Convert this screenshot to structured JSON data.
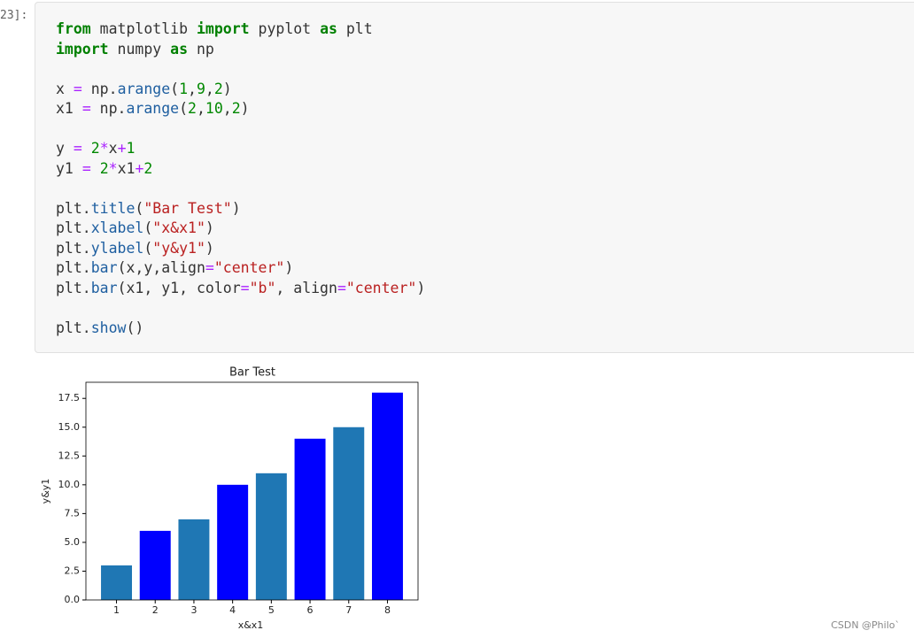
{
  "cell": {
    "prompt": "23]:",
    "code": [
      [
        {
          "text": "from",
          "color": "#008000",
          "bold": true
        },
        {
          "text": " matplotlib ",
          "color": "#333333"
        },
        {
          "text": "import",
          "color": "#008000",
          "bold": true
        },
        {
          "text": " pyplot ",
          "color": "#333333"
        },
        {
          "text": "as",
          "color": "#008000",
          "bold": true
        },
        {
          "text": " plt",
          "color": "#333333"
        }
      ],
      [
        {
          "text": "import",
          "color": "#008000",
          "bold": true
        },
        {
          "text": " numpy ",
          "color": "#333333"
        },
        {
          "text": "as",
          "color": "#008000",
          "bold": true
        },
        {
          "text": " np",
          "color": "#333333"
        }
      ],
      [],
      [
        {
          "text": "x ",
          "color": "#333333"
        },
        {
          "text": "=",
          "color": "#aa22ff"
        },
        {
          "text": " np.",
          "color": "#333333"
        },
        {
          "text": "arange",
          "color": "#1f5fa0"
        },
        {
          "text": "(",
          "color": "#333333"
        },
        {
          "text": "1",
          "color": "#008800"
        },
        {
          "text": ",",
          "color": "#333333"
        },
        {
          "text": "9",
          "color": "#008800"
        },
        {
          "text": ",",
          "color": "#333333"
        },
        {
          "text": "2",
          "color": "#008800"
        },
        {
          "text": ")",
          "color": "#333333"
        }
      ],
      [
        {
          "text": "x1 ",
          "color": "#333333"
        },
        {
          "text": "=",
          "color": "#aa22ff"
        },
        {
          "text": " np.",
          "color": "#333333"
        },
        {
          "text": "arange",
          "color": "#1f5fa0"
        },
        {
          "text": "(",
          "color": "#333333"
        },
        {
          "text": "2",
          "color": "#008800"
        },
        {
          "text": ",",
          "color": "#333333"
        },
        {
          "text": "10",
          "color": "#008800"
        },
        {
          "text": ",",
          "color": "#333333"
        },
        {
          "text": "2",
          "color": "#008800"
        },
        {
          "text": ")",
          "color": "#333333"
        }
      ],
      [],
      [
        {
          "text": "y ",
          "color": "#333333"
        },
        {
          "text": "=",
          "color": "#aa22ff"
        },
        {
          "text": " ",
          "color": "#333333"
        },
        {
          "text": "2",
          "color": "#008800"
        },
        {
          "text": "*",
          "color": "#aa22ff"
        },
        {
          "text": "x",
          "color": "#333333"
        },
        {
          "text": "+",
          "color": "#aa22ff"
        },
        {
          "text": "1",
          "color": "#008800"
        }
      ],
      [
        {
          "text": "y1 ",
          "color": "#333333"
        },
        {
          "text": "=",
          "color": "#aa22ff"
        },
        {
          "text": " ",
          "color": "#333333"
        },
        {
          "text": "2",
          "color": "#008800"
        },
        {
          "text": "*",
          "color": "#aa22ff"
        },
        {
          "text": "x1",
          "color": "#333333"
        },
        {
          "text": "+",
          "color": "#aa22ff"
        },
        {
          "text": "2",
          "color": "#008800"
        }
      ],
      [],
      [
        {
          "text": "plt.",
          "color": "#333333"
        },
        {
          "text": "title",
          "color": "#1f5fa0"
        },
        {
          "text": "(",
          "color": "#333333"
        },
        {
          "text": "\"Bar Test\"",
          "color": "#ba2121"
        },
        {
          "text": ")",
          "color": "#333333"
        }
      ],
      [
        {
          "text": "plt.",
          "color": "#333333"
        },
        {
          "text": "xlabel",
          "color": "#1f5fa0"
        },
        {
          "text": "(",
          "color": "#333333"
        },
        {
          "text": "\"x&x1\"",
          "color": "#ba2121"
        },
        {
          "text": ")",
          "color": "#333333"
        }
      ],
      [
        {
          "text": "plt.",
          "color": "#333333"
        },
        {
          "text": "ylabel",
          "color": "#1f5fa0"
        },
        {
          "text": "(",
          "color": "#333333"
        },
        {
          "text": "\"y&y1\"",
          "color": "#ba2121"
        },
        {
          "text": ")",
          "color": "#333333"
        }
      ],
      [
        {
          "text": "plt.",
          "color": "#333333"
        },
        {
          "text": "bar",
          "color": "#1f5fa0"
        },
        {
          "text": "(x,y,align",
          "color": "#333333"
        },
        {
          "text": "=",
          "color": "#aa22ff"
        },
        {
          "text": "\"center\"",
          "color": "#ba2121"
        },
        {
          "text": ")",
          "color": "#333333"
        }
      ],
      [
        {
          "text": "plt.",
          "color": "#333333"
        },
        {
          "text": "bar",
          "color": "#1f5fa0"
        },
        {
          "text": "(x1, y1, color",
          "color": "#333333"
        },
        {
          "text": "=",
          "color": "#aa22ff"
        },
        {
          "text": "\"b\"",
          "color": "#ba2121"
        },
        {
          "text": ", align",
          "color": "#333333"
        },
        {
          "text": "=",
          "color": "#aa22ff"
        },
        {
          "text": "\"center\"",
          "color": "#ba2121"
        },
        {
          "text": ")",
          "color": "#333333"
        }
      ],
      [],
      [
        {
          "text": "plt.",
          "color": "#333333"
        },
        {
          "text": "show",
          "color": "#1f5fa0"
        },
        {
          "text": "()",
          "color": "#333333"
        }
      ]
    ]
  },
  "chart_data": {
    "type": "bar",
    "title": "Bar Test",
    "x_label": "x&x1",
    "y_label": "y&y1",
    "series": [
      {
        "color": "#1f77b4",
        "x": [
          1,
          3,
          5,
          7
        ],
        "values": [
          3,
          7,
          11,
          15
        ]
      },
      {
        "color": "#0000ff",
        "x": [
          2,
          4,
          6,
          8
        ],
        "values": [
          6,
          10,
          14,
          18
        ]
      }
    ],
    "xlim": [
      0.21,
      8.79
    ],
    "xticks": [
      1,
      2,
      3,
      4,
      5,
      6,
      7,
      8
    ],
    "ylim": [
      0,
      18.9
    ],
    "yticks": [
      {
        "value": 0,
        "label": "0.0"
      },
      2.5,
      {
        "value": 5,
        "label": "5.0"
      },
      7.5,
      {
        "value": 10,
        "label": "10.0"
      },
      12.5,
      {
        "value": 15,
        "label": "15.0"
      },
      17.5
    ]
  },
  "watermark": "CSDN @Philo`"
}
